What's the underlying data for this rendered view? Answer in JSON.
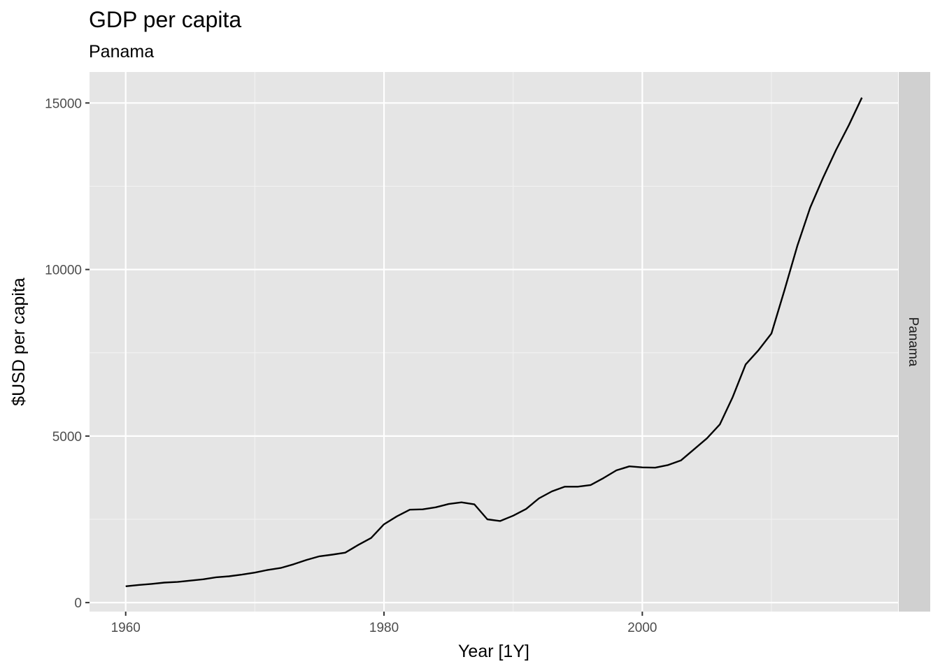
{
  "chart_data": {
    "type": "line",
    "title": "GDP per capita",
    "subtitle": "Panama",
    "xlabel": "Year [1Y]",
    "ylabel": "$USD per capita",
    "facet_label": "Panama",
    "xlim": [
      1957.2,
      2019.8
    ],
    "ylim": [
      -270,
      15930
    ],
    "x_ticks": [
      1960,
      1980,
      2000
    ],
    "x_minor": [
      1970,
      1990,
      2010
    ],
    "y_ticks": [
      0,
      5000,
      10000,
      15000
    ],
    "y_minor": [
      2500,
      7500,
      12500
    ],
    "grid": true,
    "background": "#e5e5e5",
    "strip_color": "#d0d0d0",
    "line_color": "#000000",
    "x": [
      1960,
      1961,
      1962,
      1963,
      1964,
      1965,
      1966,
      1967,
      1968,
      1969,
      1970,
      1971,
      1972,
      1973,
      1974,
      1975,
      1976,
      1977,
      1978,
      1979,
      1980,
      1981,
      1982,
      1983,
      1984,
      1985,
      1986,
      1987,
      1988,
      1989,
      1990,
      1991,
      1992,
      1993,
      1994,
      1995,
      1996,
      1997,
      1998,
      1999,
      2000,
      2001,
      2002,
      2003,
      2004,
      2005,
      2006,
      2007,
      2008,
      2009,
      2010,
      2011,
      2012,
      2013,
      2014,
      2015,
      2016,
      2017
    ],
    "series": [
      {
        "values": [
          490,
          530,
          560,
          600,
          620,
          660,
          700,
          760,
          790,
          840,
          900,
          980,
          1040,
          1150,
          1280,
          1390,
          1440,
          1500,
          1730,
          1940,
          2350,
          2590,
          2790,
          2800,
          2860,
          2960,
          3010,
          2950,
          2500,
          2450,
          2610,
          2810,
          3130,
          3340,
          3480,
          3480,
          3530,
          3740,
          3970,
          4090,
          4060,
          4050,
          4130,
          4270,
          4600,
          4930,
          5350,
          6170,
          7150,
          7580,
          8080,
          9370,
          10710,
          11860,
          12760,
          13590,
          14340,
          15160
        ]
      }
    ]
  }
}
